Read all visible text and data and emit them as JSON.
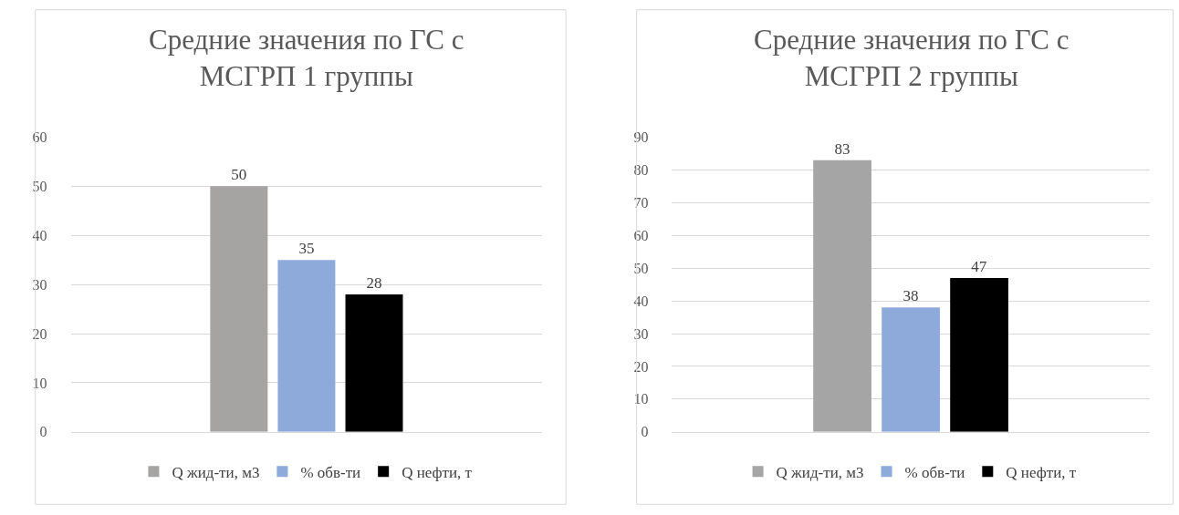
{
  "chart_data": [
    {
      "type": "bar",
      "title": "Средние значения по ГС с МСГРП 1 группы",
      "categories": [
        null
      ],
      "series": [
        {
          "name": "Q жид-ти, м3",
          "color": "#a6a3a3",
          "values": [
            50
          ]
        },
        {
          "name": "% обв-ти",
          "color": "#8eaadb",
          "values": [
            35
          ]
        },
        {
          "name": "Q нефти, т",
          "color": "#000000",
          "values": [
            28
          ]
        }
      ],
      "ylim": [
        0,
        60
      ],
      "yticks": [
        0,
        10,
        20,
        30,
        40,
        50,
        60
      ],
      "grid": "y",
      "legend": "bottom",
      "data_labels": true,
      "tick_labels": "y"
    },
    {
      "type": "bar",
      "title": "Средние значения по ГС с МСГРП 2 группы",
      "categories": [
        null
      ],
      "series": [
        {
          "name": "Q жид-ти, м3",
          "color": "#a5a5a5",
          "values": [
            83
          ]
        },
        {
          "name": "% обв-ти",
          "color": "#8eaadb",
          "values": [
            38
          ]
        },
        {
          "name": "Q нефти, т",
          "color": "#000000",
          "values": [
            47
          ]
        }
      ],
      "ylim": [
        0,
        90
      ],
      "yticks": [
        0,
        10,
        20,
        30,
        40,
        50,
        60,
        70,
        80,
        90
      ],
      "grid": "y",
      "legend": "bottom",
      "data_labels": true,
      "tick_labels": "y"
    }
  ]
}
